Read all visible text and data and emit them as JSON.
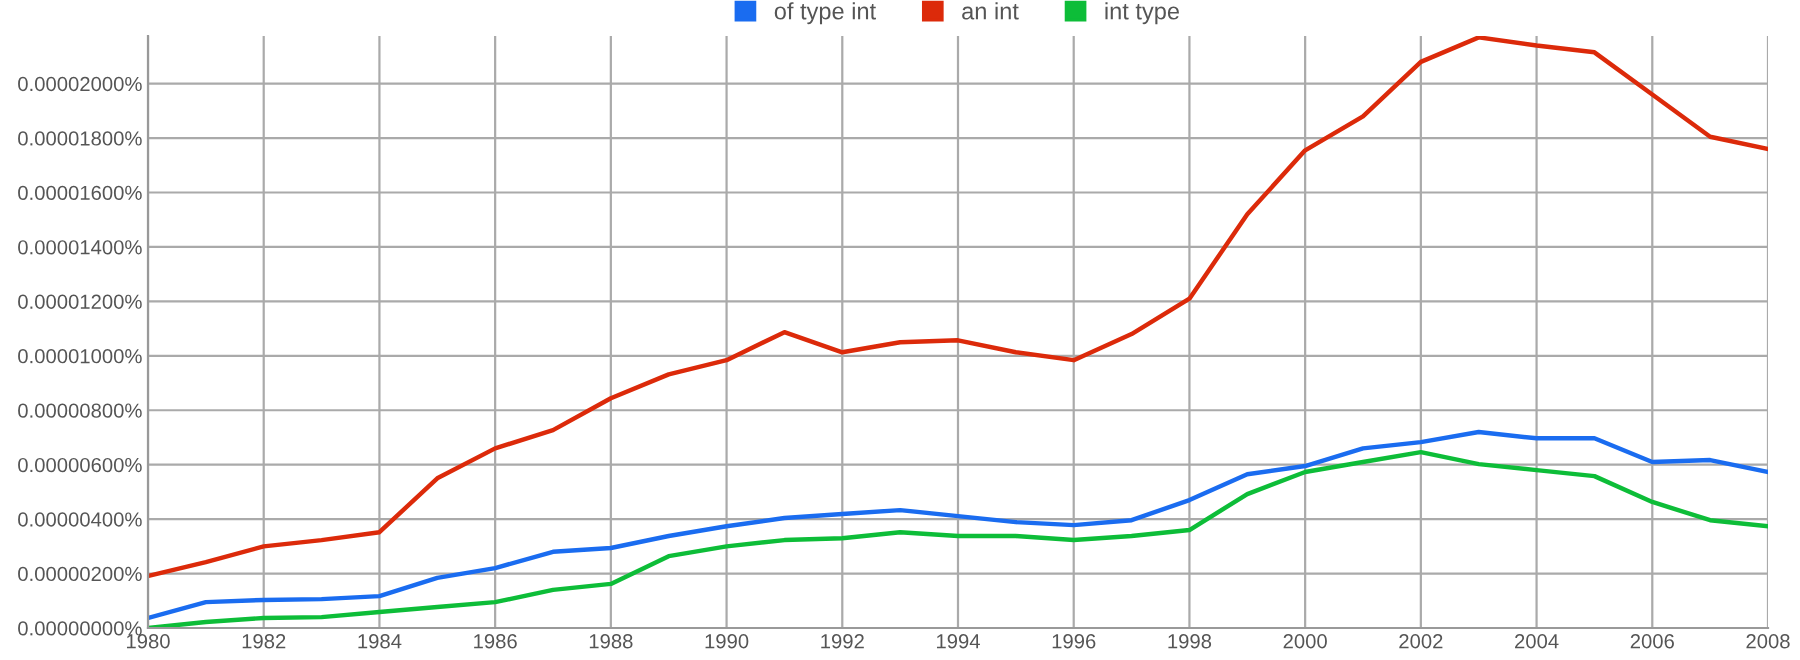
{
  "chart_data": {
    "type": "line",
    "x": [
      1980,
      1981,
      1982,
      1983,
      1984,
      1985,
      1986,
      1987,
      1988,
      1989,
      1990,
      1991,
      1992,
      1993,
      1994,
      1995,
      1996,
      1997,
      1998,
      1999,
      2000,
      2001,
      2002,
      2003,
      2004,
      2005,
      2006,
      2007,
      2008
    ],
    "series": [
      {
        "name": "of type int",
        "color": "#1a6cf0",
        "values": [
          3.7e-07,
          9.5e-07,
          1.03e-06,
          1.06e-06,
          1.17e-06,
          1.84e-06,
          2.2e-06,
          2.8e-06,
          2.94e-06,
          3.38e-06,
          3.74e-06,
          4.04e-06,
          4.19e-06,
          4.33e-06,
          4.11e-06,
          3.89e-06,
          3.78e-06,
          3.96e-06,
          4.7e-06,
          5.65e-06,
          5.95e-06,
          6.6e-06,
          6.83e-06,
          7.2e-06,
          6.97e-06,
          6.97e-06,
          6.1e-06,
          6.17e-06,
          5.73e-06
        ]
      },
      {
        "name": "an int",
        "color": "#dc2a0a",
        "values": [
          1.91e-06,
          2.42e-06,
          3e-06,
          3.23e-06,
          3.52e-06,
          5.5e-06,
          6.6e-06,
          7.27e-06,
          8.44e-06,
          9.32e-06,
          9.84e-06,
          1.087e-05,
          1.013e-05,
          1.05e-05,
          1.057e-05,
          1.013e-05,
          9.84e-06,
          1.08e-05,
          1.21e-05,
          1.52e-05,
          1.755e-05,
          1.88e-05,
          2.08e-05,
          2.17e-05,
          2.14e-05,
          2.115e-05,
          1.96e-05,
          1.805e-05,
          1.76e-05
        ]
      },
      {
        "name": "int type",
        "color": "#0dbd38",
        "values": [
          0.0,
          2.2e-07,
          3.7e-07,
          4e-07,
          5.9e-07,
          7.7e-07,
          9.5e-07,
          1.4e-06,
          1.62e-06,
          2.64e-06,
          3e-06,
          3.23e-06,
          3.3e-06,
          3.52e-06,
          3.38e-06,
          3.38e-06,
          3.23e-06,
          3.38e-06,
          3.6e-06,
          4.92e-06,
          5.73e-06,
          6.1e-06,
          6.46e-06,
          6.02e-06,
          5.8e-06,
          5.58e-06,
          4.63e-06,
          3.96e-06,
          3.74e-06
        ]
      }
    ],
    "xlim": [
      1980,
      2008
    ],
    "xticks": [
      1980,
      1982,
      1984,
      1986,
      1988,
      1990,
      1992,
      1994,
      1996,
      1998,
      2000,
      2002,
      2004,
      2006,
      2008
    ],
    "ylim": [
      0,
      2.175e-05
    ],
    "yticks": [
      {
        "value": 0,
        "label": "0.00000000%"
      },
      {
        "value": 2e-06,
        "label": "0.00000200%"
      },
      {
        "value": 4e-06,
        "label": "0.00000400%"
      },
      {
        "value": 6e-06,
        "label": "0.00000600%"
      },
      {
        "value": 8e-06,
        "label": "0.00000800%"
      },
      {
        "value": 1e-05,
        "label": "0.00001000%"
      },
      {
        "value": 1.2e-05,
        "label": "0.00001200%"
      },
      {
        "value": 1.4e-05,
        "label": "0.00001400%"
      },
      {
        "value": 1.6e-05,
        "label": "0.00001600%"
      },
      {
        "value": 1.8e-05,
        "label": "0.00001800%"
      },
      {
        "value": 2e-05,
        "label": "0.00002000%"
      }
    ],
    "grid": true,
    "legend": "top",
    "marker": "none",
    "line_style": "solid"
  }
}
